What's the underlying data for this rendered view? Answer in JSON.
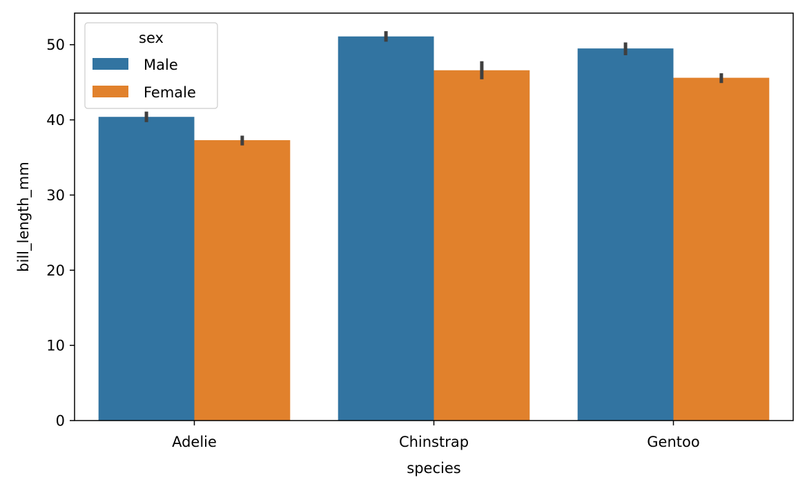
{
  "chart_data": {
    "type": "bar",
    "categories": [
      "Adelie",
      "Chinstrap",
      "Gentoo"
    ],
    "series": [
      {
        "name": "Male",
        "color": "#3274a1",
        "values": [
          40.4,
          51.1,
          49.5
        ],
        "err_low": [
          39.7,
          50.4,
          48.6
        ],
        "err_high": [
          41.1,
          51.8,
          50.3
        ]
      },
      {
        "name": "Female",
        "color": "#e1812c",
        "values": [
          37.3,
          46.6,
          45.6
        ],
        "err_low": [
          36.6,
          45.4,
          44.9
        ],
        "err_high": [
          37.9,
          47.8,
          46.2
        ]
      }
    ],
    "xlabel": "species",
    "ylabel": "bill_length_mm",
    "ylim": [
      0,
      54.2
    ],
    "yticks": [
      0,
      10,
      20,
      30,
      40,
      50
    ],
    "legend": {
      "title": "sex",
      "placement": "top-left"
    },
    "grid": false,
    "errorbar_color": "#3f3f3f"
  }
}
